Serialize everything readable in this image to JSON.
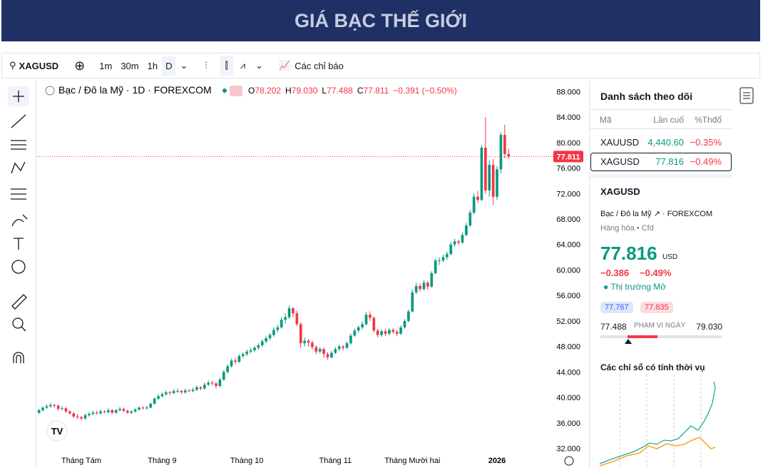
{
  "header": {
    "title": "GIÁ BẠC THẾ GIỚI"
  },
  "toolbar": {
    "symbol": "XAGUSD",
    "intervals": [
      "1m",
      "30m",
      "1h",
      "D"
    ],
    "indicators": "Các chỉ báo"
  },
  "chart_data": {
    "type": "candlestick",
    "title": "Bạc / Đô la Mỹ · 1D · FOREXCOM",
    "ohlc": [
      {
        "key": "O",
        "value": "78.202"
      },
      {
        "key": "H",
        "value": "79.030"
      },
      {
        "key": "L",
        "value": "77.488"
      },
      {
        "key": "C",
        "value": "77.811"
      }
    ],
    "change": "−0.391 (−0.50%)",
    "up_color": "#089981",
    "down_color": "#f23645",
    "candles": [
      [
        37.6,
        38.2,
        37.4,
        38.0
      ],
      [
        38.0,
        38.6,
        37.8,
        38.4
      ],
      [
        38.4,
        38.9,
        38.2,
        38.6
      ],
      [
        38.6,
        39.1,
        38.4,
        38.8
      ],
      [
        38.8,
        39.0,
        38.4,
        38.7
      ],
      [
        38.7,
        38.9,
        37.9,
        38.2
      ],
      [
        38.2,
        38.6,
        38.0,
        38.3
      ],
      [
        38.3,
        38.5,
        37.6,
        37.8
      ],
      [
        37.8,
        38.0,
        37.3,
        37.5
      ],
      [
        37.5,
        37.7,
        36.8,
        37.0
      ],
      [
        37.0,
        37.4,
        36.6,
        36.9
      ],
      [
        36.9,
        37.1,
        36.4,
        36.7
      ],
      [
        36.7,
        37.5,
        36.5,
        37.2
      ],
      [
        37.2,
        37.7,
        37.0,
        37.4
      ],
      [
        37.4,
        37.9,
        37.2,
        37.6
      ],
      [
        37.6,
        37.9,
        37.3,
        37.5
      ],
      [
        37.5,
        38.1,
        37.3,
        37.8
      ],
      [
        37.8,
        38.0,
        37.5,
        37.7
      ],
      [
        37.7,
        38.3,
        37.5,
        38.0
      ],
      [
        38.0,
        38.2,
        37.4,
        37.6
      ],
      [
        37.6,
        38.2,
        37.4,
        38.0
      ],
      [
        38.0,
        38.5,
        37.8,
        38.2
      ],
      [
        38.2,
        38.4,
        37.7,
        37.9
      ],
      [
        37.9,
        38.1,
        37.4,
        37.6
      ],
      [
        37.6,
        38.0,
        37.4,
        37.8
      ],
      [
        37.8,
        38.3,
        37.6,
        38.1
      ],
      [
        38.1,
        38.6,
        37.9,
        38.4
      ],
      [
        38.4,
        38.6,
        38.1,
        38.3
      ],
      [
        38.3,
        38.7,
        38.1,
        38.4
      ],
      [
        38.4,
        39.2,
        38.3,
        39.0
      ],
      [
        39.0,
        40.0,
        38.9,
        39.8
      ],
      [
        39.8,
        40.5,
        39.6,
        40.2
      ],
      [
        40.2,
        40.8,
        40.0,
        40.5
      ],
      [
        40.5,
        41.1,
        40.3,
        40.8
      ],
      [
        40.8,
        41.0,
        40.4,
        40.7
      ],
      [
        40.7,
        41.3,
        40.5,
        41.0
      ],
      [
        41.0,
        41.4,
        40.7,
        41.0
      ],
      [
        41.0,
        41.2,
        40.5,
        40.8
      ],
      [
        40.8,
        41.4,
        40.6,
        41.1
      ],
      [
        41.1,
        41.3,
        40.8,
        41.0
      ],
      [
        41.0,
        41.5,
        40.8,
        41.2
      ],
      [
        41.2,
        41.9,
        41.0,
        41.6
      ],
      [
        41.6,
        41.8,
        41.1,
        41.4
      ],
      [
        41.4,
        42.3,
        41.2,
        42.0
      ],
      [
        42.0,
        42.6,
        41.8,
        42.3
      ],
      [
        42.3,
        42.6,
        41.9,
        42.2
      ],
      [
        42.2,
        42.4,
        41.4,
        41.8
      ],
      [
        41.8,
        43.1,
        41.6,
        42.8
      ],
      [
        42.8,
        44.3,
        42.6,
        44.0
      ],
      [
        44.0,
        45.2,
        43.8,
        44.9
      ],
      [
        44.9,
        46.1,
        44.7,
        45.8
      ],
      [
        45.8,
        46.2,
        45.2,
        45.6
      ],
      [
        45.6,
        46.8,
        45.4,
        46.5
      ],
      [
        46.5,
        47.1,
        46.2,
        46.8
      ],
      [
        46.8,
        47.5,
        46.5,
        47.2
      ],
      [
        47.2,
        47.8,
        46.9,
        47.4
      ],
      [
        47.4,
        48.1,
        47.1,
        47.8
      ],
      [
        47.8,
        48.5,
        47.5,
        48.2
      ],
      [
        48.2,
        49.1,
        47.9,
        48.8
      ],
      [
        48.8,
        49.6,
        48.5,
        49.3
      ],
      [
        49.3,
        50.1,
        49.0,
        49.8
      ],
      [
        49.8,
        51.0,
        49.5,
        50.6
      ],
      [
        50.6,
        51.4,
        50.2,
        51.0
      ],
      [
        51.0,
        52.6,
        50.8,
        52.2
      ],
      [
        52.2,
        53.2,
        51.6,
        52.6
      ],
      [
        52.6,
        54.4,
        52.3,
        54.0
      ],
      [
        54.0,
        54.2,
        52.6,
        53.2
      ],
      [
        53.2,
        53.6,
        51.2,
        51.5
      ],
      [
        51.5,
        51.8,
        47.8,
        48.5
      ],
      [
        48.5,
        49.4,
        48.0,
        48.9
      ],
      [
        48.9,
        49.2,
        48.0,
        48.6
      ],
      [
        48.6,
        48.9,
        47.5,
        47.9
      ],
      [
        47.9,
        48.2,
        46.8,
        47.2
      ],
      [
        47.2,
        47.9,
        46.9,
        47.6
      ],
      [
        47.6,
        47.8,
        46.2,
        46.8
      ],
      [
        46.8,
        47.1,
        45.9,
        46.3
      ],
      [
        46.3,
        47.3,
        46.1,
        47.0
      ],
      [
        47.0,
        47.9,
        46.8,
        47.6
      ],
      [
        47.6,
        48.3,
        47.3,
        48.0
      ],
      [
        48.0,
        48.2,
        47.4,
        47.8
      ],
      [
        47.8,
        48.8,
        47.6,
        48.5
      ],
      [
        48.5,
        50.0,
        48.3,
        49.7
      ],
      [
        49.7,
        50.8,
        49.5,
        50.5
      ],
      [
        50.5,
        51.3,
        50.2,
        51.0
      ],
      [
        51.0,
        51.9,
        50.7,
        51.5
      ],
      [
        51.5,
        53.4,
        51.3,
        53.0
      ],
      [
        53.0,
        53.5,
        52.0,
        52.5
      ],
      [
        52.5,
        52.7,
        50.2,
        50.5
      ],
      [
        50.5,
        50.8,
        49.4,
        49.8
      ],
      [
        49.8,
        50.7,
        49.5,
        50.4
      ],
      [
        50.4,
        50.7,
        49.6,
        50.0
      ],
      [
        50.0,
        50.9,
        49.8,
        50.6
      ],
      [
        50.6,
        50.9,
        50.0,
        50.3
      ],
      [
        50.3,
        50.6,
        49.6,
        50.0
      ],
      [
        50.0,
        51.3,
        49.8,
        51.0
      ],
      [
        51.0,
        52.3,
        50.8,
        52.0
      ],
      [
        52.0,
        53.8,
        51.8,
        53.5
      ],
      [
        53.5,
        56.9,
        53.3,
        56.5
      ],
      [
        56.5,
        58.0,
        56.2,
        57.5
      ],
      [
        57.5,
        57.9,
        56.6,
        57.0
      ],
      [
        57.0,
        58.4,
        56.8,
        58.0
      ],
      [
        58.0,
        58.3,
        56.9,
        57.4
      ],
      [
        57.4,
        59.8,
        57.2,
        59.5
      ],
      [
        59.5,
        61.8,
        59.3,
        61.5
      ],
      [
        61.5,
        62.0,
        60.8,
        61.5
      ],
      [
        61.5,
        62.4,
        61.2,
        62.0
      ],
      [
        62.0,
        62.9,
        61.6,
        62.5
      ],
      [
        62.5,
        64.4,
        62.3,
        64.0
      ],
      [
        64.0,
        64.9,
        63.6,
        64.5
      ],
      [
        64.5,
        64.8,
        63.9,
        64.3
      ],
      [
        64.3,
        65.9,
        64.1,
        65.5
      ],
      [
        65.5,
        67.4,
        65.3,
        67.0
      ],
      [
        67.0,
        69.4,
        66.8,
        69.0
      ],
      [
        69.0,
        72.0,
        68.7,
        71.5
      ],
      [
        71.5,
        72.4,
        70.5,
        71.0
      ],
      [
        71.0,
        79.6,
        70.8,
        79.2
      ],
      [
        79.2,
        84.0,
        72.0,
        72.5
      ],
      [
        72.5,
        77.2,
        71.5,
        76.5
      ],
      [
        76.5,
        77.4,
        70.2,
        71.5
      ],
      [
        71.5,
        76.3,
        71.0,
        75.8
      ],
      [
        75.8,
        81.6,
        75.2,
        81.2
      ],
      [
        81.2,
        82.8,
        77.5,
        78.2
      ],
      [
        78.202,
        79.03,
        77.488,
        77.811
      ]
    ],
    "xlim": [
      -0.5,
      134
    ],
    "xticks": [
      {
        "value": 11,
        "label": "Tháng Tám"
      },
      {
        "value": 32,
        "label": "Tháng 9"
      },
      {
        "value": 54,
        "label": "Tháng 10"
      },
      {
        "value": 77,
        "label": "Tháng 11"
      },
      {
        "value": 97,
        "label": "Tháng Mười hai"
      },
      {
        "value": 119,
        "label": "2026"
      }
    ],
    "ylim": [
      31.5,
      89.5
    ],
    "yticks": [
      {
        "value": 32,
        "label": "32.000"
      },
      {
        "value": 36,
        "label": "36.000"
      },
      {
        "value": 40,
        "label": "40.000"
      },
      {
        "value": 44,
        "label": "44.000"
      },
      {
        "value": 48,
        "label": "48.000"
      },
      {
        "value": 52,
        "label": "52.000"
      },
      {
        "value": 56,
        "label": "56.000"
      },
      {
        "value": 60,
        "label": "60.000"
      },
      {
        "value": 64,
        "label": "64.000"
      },
      {
        "value": 68,
        "label": "68.000"
      },
      {
        "value": 72,
        "label": "72.000"
      },
      {
        "value": 76,
        "label": "76.000"
      },
      {
        "value": 80,
        "label": "80.000"
      },
      {
        "value": 84,
        "label": "84.000"
      },
      {
        "value": 88,
        "label": "88.000"
      }
    ]
  },
  "watchlist": {
    "title": "Danh sách theo dõi",
    "columns": [
      "Mã",
      "Lần cuố",
      "%Thđổ"
    ],
    "rows": [
      [
        "XAUUSD",
        "4,440.60",
        "−0.35%"
      ],
      [
        "XAGUSD",
        "77.816",
        "−0.49%"
      ]
    ]
  },
  "detail": {
    "symbol": "XAGUSD",
    "name": "Bạc / Đô la Mỹ",
    "exchange": "FOREXCOM",
    "category": "Hàng hóa",
    "kind": "Cfd",
    "price": "77.816",
    "currency": "USD",
    "change": "−0.386",
    "change_pct": "−0.49%",
    "status": "Thị trường Mở",
    "bid": "77.767",
    "ask": "77.835",
    "range_low": "77.488",
    "range_label": "PHẠM VI NGÀY",
    "range_high": "79.030",
    "seasonal_title": "Các chỉ số có tính thời vụ"
  }
}
